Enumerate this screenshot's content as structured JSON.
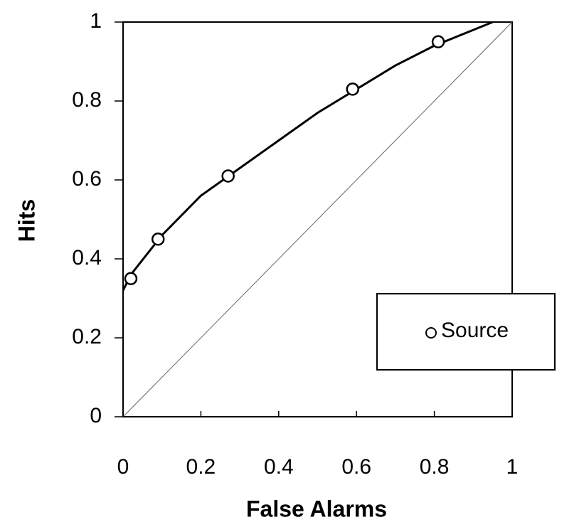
{
  "chart_data": {
    "type": "scatter",
    "xlabel": "False Alarms",
    "ylabel": "Hits",
    "series": [
      {
        "name": "Source",
        "color": "#000000",
        "x": [
          0.02,
          0.09,
          0.27,
          0.59,
          0.81
        ],
        "values": [
          0.35,
          0.45,
          0.61,
          0.83,
          0.95
        ]
      }
    ],
    "fit": {
      "x": [
        0,
        0.02,
        0.1,
        0.2,
        0.3,
        0.4,
        0.5,
        0.6,
        0.7,
        0.8,
        0.9,
        0.95
      ],
      "y": [
        0.32,
        0.36,
        0.46,
        0.56,
        0.63,
        0.7,
        0.77,
        0.83,
        0.89,
        0.94,
        0.98,
        1.0
      ]
    },
    "xlim": [
      0,
      1
    ],
    "ylim": [
      0,
      1
    ],
    "xticks": [
      0,
      0.2,
      0.4,
      0.6,
      0.8,
      1
    ],
    "yticks": [
      0,
      0.2,
      0.4,
      0.6,
      0.8,
      1
    ],
    "legend": "lower right"
  }
}
